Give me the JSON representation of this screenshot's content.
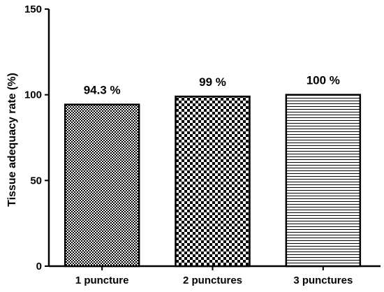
{
  "chart_data": {
    "type": "bar",
    "categories": [
      "1 puncture",
      "2 punctures",
      "3 punctures"
    ],
    "values": [
      94.3,
      99,
      100
    ],
    "data_labels": [
      "94.3 %",
      "99 %",
      "100 %"
    ],
    "patterns": [
      "fine-checker",
      "coarse-checker",
      "horizontal-lines"
    ],
    "title": "",
    "xlabel": "",
    "ylabel": "Tissue adequacy rate (%)",
    "ylim": [
      0,
      150
    ],
    "yticks": [
      0,
      50,
      100,
      150
    ],
    "grid": false,
    "legend": "none",
    "colors": {
      "bar_stroke": "#000000",
      "pattern": "#000000",
      "background": "#ffffff"
    }
  }
}
